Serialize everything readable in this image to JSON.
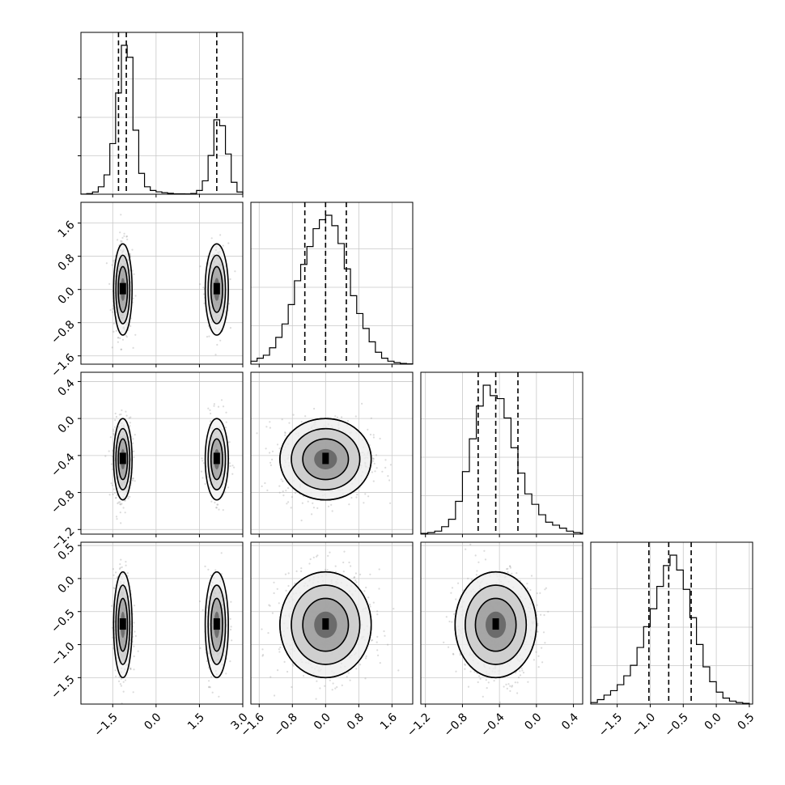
{
  "chart_data": {
    "type": "corner",
    "parameters": 4,
    "panel_order": [
      "p0",
      "p1",
      "p2",
      "p3"
    ],
    "axes": {
      "p0": {
        "range": [
          -2.6,
          3.0
        ],
        "ticks": [
          -1.5,
          0.0,
          1.5,
          3.0
        ],
        "tick_labels": [
          "−1.5",
          "0.0",
          "1.5",
          "3.0"
        ]
      },
      "p1": {
        "range": [
          -1.8,
          2.1
        ],
        "ticks": [
          -1.6,
          -0.8,
          0.0,
          0.8,
          1.6
        ],
        "tick_labels": [
          "−1.6",
          "−0.8",
          "0.0",
          "0.8",
          "1.6"
        ]
      },
      "p2": {
        "range": [
          -1.25,
          0.5
        ],
        "ticks": [
          -1.2,
          -0.8,
          -0.4,
          0.0,
          0.4
        ],
        "tick_labels": [
          "−1.2",
          "−0.8",
          "−0.4",
          "0.0",
          "0.4"
        ]
      },
      "p3": {
        "range": [
          -1.9,
          0.55
        ],
        "ticks": [
          -1.5,
          -1.0,
          -0.5,
          0.0,
          0.5
        ],
        "tick_labels": [
          "−1.5",
          "−1.0",
          "−0.5",
          "0.0",
          "0.5"
        ]
      }
    },
    "quantiles": {
      "p0": [
        -1.3,
        -1.03,
        2.1
      ],
      "p1": [
        -0.5,
        0.0,
        0.5
      ],
      "p2": [
        -0.63,
        -0.44,
        -0.2
      ],
      "p3": [
        -1.02,
        -0.72,
        -0.38
      ]
    },
    "histograms": {
      "p0": {
        "edges": [
          -2.6,
          -2.4,
          -2.2,
          -2.0,
          -1.8,
          -1.6,
          -1.4,
          -1.2,
          -1.0,
          -0.8,
          -0.6,
          -0.4,
          -0.2,
          0.0,
          0.2,
          0.4,
          0.6,
          0.8,
          1.0,
          1.2,
          1.4,
          1.6,
          1.8,
          2.0,
          2.2,
          2.4,
          2.6,
          2.8,
          3.0
        ],
        "counts": [
          0.1,
          0.4,
          1.5,
          5,
          13,
          34,
          68,
          100,
          92,
          43,
          14,
          5,
          2.5,
          1.6,
          1.0,
          0.6,
          0.3,
          0.3,
          0.2,
          0.5,
          2.5,
          9,
          26,
          50,
          46,
          27,
          8,
          1.5
        ]
      },
      "p1": {
        "edges": [
          -1.8,
          -1.65,
          -1.5,
          -1.35,
          -1.2,
          -1.05,
          -0.9,
          -0.75,
          -0.6,
          -0.45,
          -0.3,
          -0.15,
          0.0,
          0.15,
          0.3,
          0.45,
          0.6,
          0.75,
          0.9,
          1.05,
          1.2,
          1.35,
          1.5,
          1.65,
          1.8,
          1.95,
          2.1
        ],
        "counts": [
          2,
          4,
          6,
          11,
          18,
          27,
          40,
          56,
          67,
          79,
          91,
          97,
          100,
          93,
          81,
          64,
          46,
          34,
          24,
          15,
          8,
          4,
          2,
          1,
          0.5,
          0.2
        ]
      },
      "p2": {
        "edges": [
          -1.25,
          -1.175,
          -1.1,
          -1.025,
          -0.95,
          -0.875,
          -0.8,
          -0.725,
          -0.65,
          -0.575,
          -0.5,
          -0.425,
          -0.35,
          -0.275,
          -0.2,
          -0.125,
          -0.05,
          0.025,
          0.1,
          0.175,
          0.25,
          0.325,
          0.4,
          0.475,
          0.5
        ],
        "counts": [
          0.5,
          1,
          2,
          5,
          10,
          22,
          42,
          64,
          86,
          100,
          93,
          91,
          78,
          58,
          41,
          27,
          20,
          13,
          8,
          6,
          4,
          2,
          1,
          0.5
        ]
      },
      "p3": {
        "edges": [
          -1.9,
          -1.8,
          -1.7,
          -1.6,
          -1.5,
          -1.4,
          -1.3,
          -1.2,
          -1.1,
          -1.0,
          -0.9,
          -0.8,
          -0.7,
          -0.6,
          -0.5,
          -0.4,
          -0.3,
          -0.2,
          -0.1,
          0.0,
          0.1,
          0.2,
          0.3,
          0.4,
          0.5
        ],
        "counts": [
          1,
          3,
          6,
          9,
          13,
          19,
          26,
          38,
          52,
          64,
          79,
          93,
          100,
          90,
          77,
          58,
          40,
          25,
          15,
          8,
          4,
          2,
          1,
          0.5
        ]
      }
    },
    "clusters": [
      {
        "weight": 0.66,
        "mean": [
          -1.15,
          0.0,
          -0.44,
          -0.7
        ],
        "sd": [
          0.16,
          0.55,
          0.22,
          0.4
        ]
      },
      {
        "weight": 0.34,
        "mean": [
          2.1,
          0.0,
          -0.44,
          -0.7
        ],
        "sd": [
          0.2,
          0.55,
          0.22,
          0.4
        ]
      }
    ],
    "grid": true,
    "contour_levels": 3,
    "scatter_color": "#999999",
    "line_color": "#000000"
  }
}
